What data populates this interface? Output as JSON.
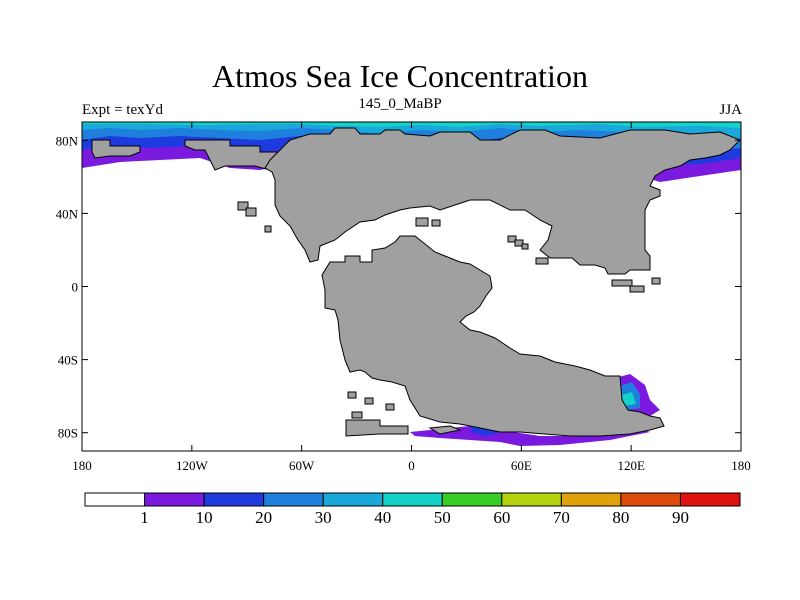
{
  "title": "Atmos Sea Ice Concentration",
  "subtitle_left": "Expt = texYd",
  "subtitle_center": "145_0_MaBP",
  "subtitle_right": "JJA",
  "map": {
    "projection": "cylindrical-equidistant",
    "lon_range": [
      -180,
      180
    ],
    "lat_range": [
      -90,
      90
    ],
    "land_color": "#a0a0a0",
    "ocean_color": "#ffffff",
    "x_tick_labels": [
      "180",
      "120W",
      "60W",
      "0",
      "60E",
      "120E",
      "180"
    ],
    "y_tick_labels": [
      "80N",
      "40N",
      "0",
      "40S",
      "80S"
    ]
  },
  "colorbar": {
    "labels": [
      "1",
      "10",
      "20",
      "30",
      "40",
      "50",
      "60",
      "70",
      "80",
      "90"
    ],
    "colors": [
      "#ffffff",
      "#7a1adf",
      "#1e3be0",
      "#1e7fdc",
      "#19a8d9",
      "#15d2c8",
      "#38cc26",
      "#b6d30f",
      "#e0a20a",
      "#de4c0b",
      "#e0120e"
    ]
  }
}
